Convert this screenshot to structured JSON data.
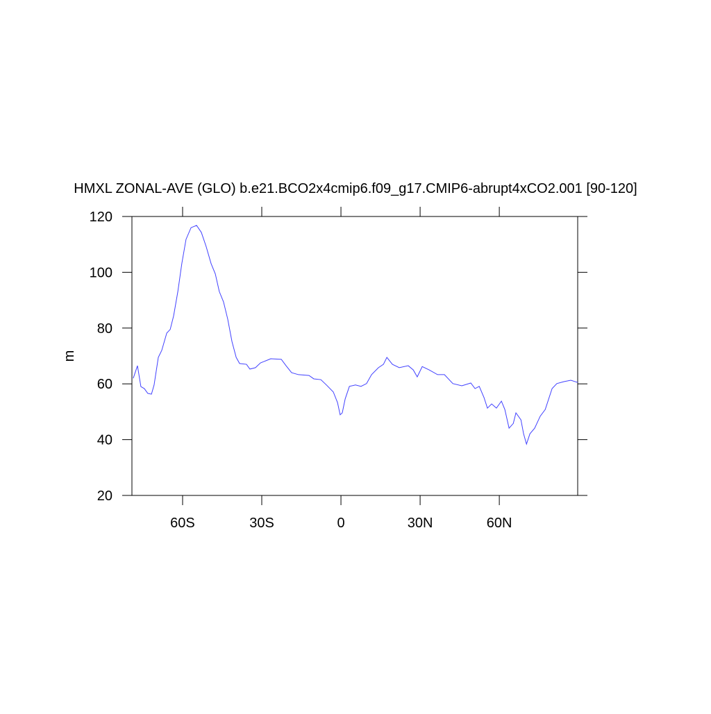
{
  "chart_data": {
    "type": "line",
    "title": "HMXL ZONAL-AVE (GLO) b.e21.BCO2x4cmip6.f09_g17.CMIP6-abrupt4xCO2.001 [90-120]",
    "ylabel": "m",
    "series": [
      {
        "name": "HMXL",
        "color": "#4040ff",
        "x": [
          -78.7,
          -77.1,
          -75.8,
          -74.5,
          -73.2,
          -71.8,
          -70.8,
          -69.2,
          -67.9,
          -66,
          -64.7,
          -63.4,
          -61.8,
          -60.3,
          -58.7,
          -56.8,
          -54.7,
          -52.9,
          -51.1,
          -49.2,
          -47.6,
          -46.1,
          -44.5,
          -42.9,
          -41.3,
          -39.7,
          -38.4,
          -35.8,
          -34.5,
          -32.4,
          -30.5,
          -26.6,
          -22.6,
          -20.8,
          -18.7,
          -16.1,
          -12.1,
          -10.3,
          -7.6,
          -5.5,
          -2.9,
          -1.3,
          -0.3,
          0.5,
          1.6,
          3.2,
          5.5,
          7.6,
          9.7,
          11.6,
          14.2,
          16.1,
          17.4,
          19.5,
          22.1,
          25.5,
          27.4,
          28.9,
          30.8,
          33.4,
          36.6,
          39.2,
          42.4,
          45.8,
          49.2,
          50.8,
          52.4,
          54.2,
          55.5,
          57.1,
          58.9,
          60.8,
          62.1,
          63.7,
          65.3,
          66.3,
          68.2,
          69.2,
          70.3,
          71.6,
          73.4,
          75.5,
          77.4,
          80,
          81.8,
          84.5,
          87.1,
          89.7
        ],
        "values": [
          62,
          66.5,
          59,
          58.3,
          56.6,
          56.3,
          59.6,
          69.5,
          72,
          78.2,
          79.5,
          84.4,
          93.1,
          103.1,
          111.8,
          116,
          116.8,
          114.3,
          109.3,
          103.1,
          99.4,
          93.1,
          89.4,
          83.2,
          75.2,
          69.5,
          67.3,
          67,
          65.3,
          65.8,
          67.5,
          69,
          68.8,
          66.5,
          64,
          63.3,
          63,
          61.8,
          61.5,
          59.6,
          57.1,
          53.3,
          48.9,
          49.6,
          54.6,
          59.1,
          59.6,
          59.1,
          60.1,
          63.3,
          65.8,
          67,
          69.5,
          67,
          65.8,
          66.5,
          65,
          62.5,
          66.2,
          65,
          63.3,
          63.3,
          60.1,
          59.3,
          60.3,
          58.3,
          59.1,
          55.1,
          51.3,
          52.8,
          51.3,
          53.8,
          50.8,
          44.1,
          45.8,
          49.6,
          47.1,
          42.1,
          38.4,
          42.1,
          44.1,
          48.4,
          50.8,
          58.3,
          60.1,
          60.8,
          61.3,
          60.5
        ]
      }
    ],
    "xlim": [
      -79.2,
      89.7
    ],
    "xticks": [
      {
        "value": -60,
        "label": "60S"
      },
      {
        "value": -30,
        "label": "30S"
      },
      0,
      {
        "value": 30,
        "label": "30N"
      },
      {
        "value": 60,
        "label": "60N"
      }
    ],
    "ylim": [
      20,
      120
    ],
    "yticks": [
      20,
      40,
      60,
      80,
      100,
      120
    ]
  }
}
